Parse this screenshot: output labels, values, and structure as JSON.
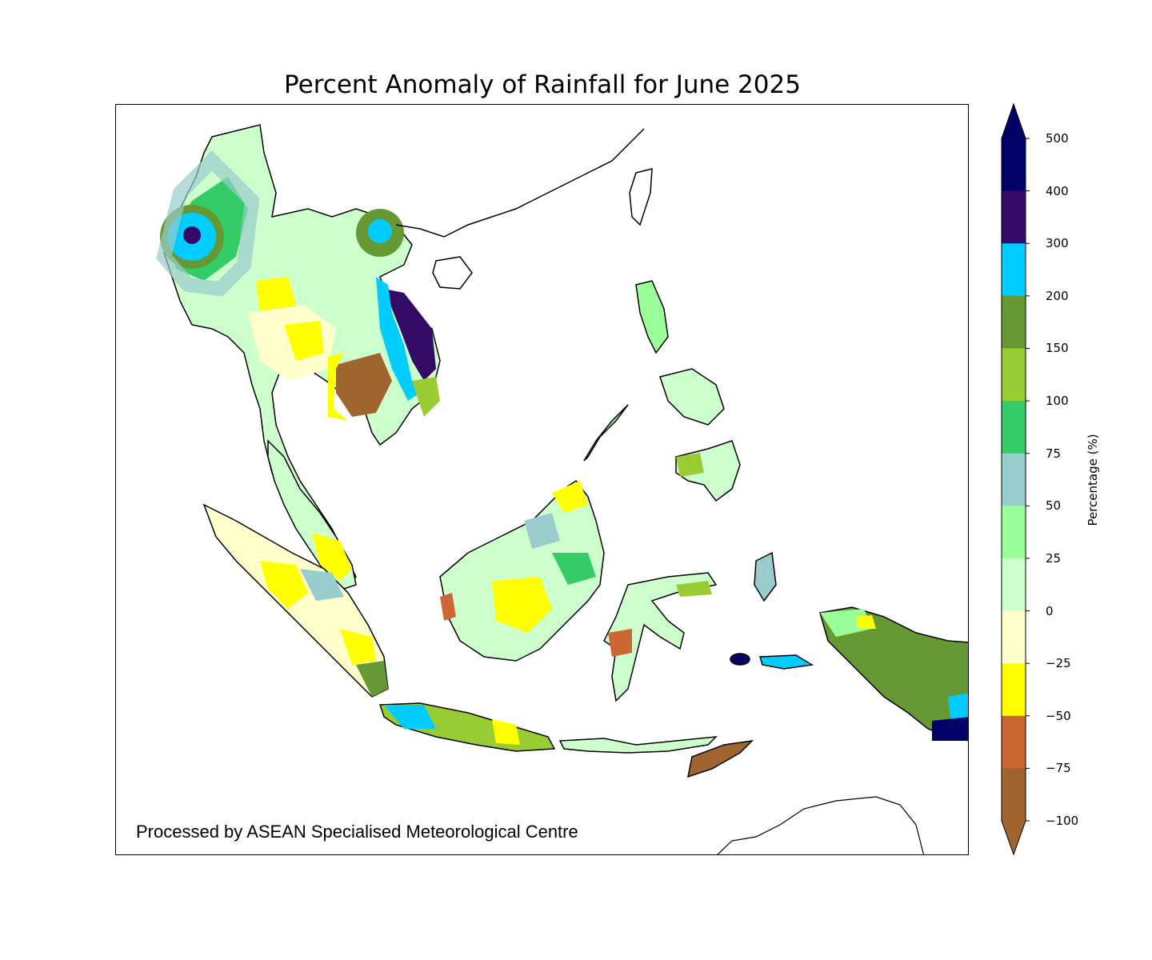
{
  "title": "Percent Anomaly of Rainfall for June 2025",
  "credit": "Processed by ASEAN Specialised Meteorological Centre",
  "colorbar": {
    "label": "Percentage (%)",
    "ticks": [
      "500",
      "400",
      "300",
      "200",
      "150",
      "100",
      "75",
      "50",
      "25",
      "0",
      "−25",
      "−50",
      "−75",
      "−100"
    ],
    "bins": [
      {
        "range": "400 to 500",
        "color": "#000066"
      },
      {
        "range": "300 to 400",
        "color": "#330a66"
      },
      {
        "range": "200 to 300",
        "color": "#00ccff"
      },
      {
        "range": "150 to 200",
        "color": "#669933"
      },
      {
        "range": "100 to 150",
        "color": "#99cc33"
      },
      {
        "range": "75 to 100",
        "color": "#33cc66"
      },
      {
        "range": "50 to 75",
        "color": "#99cccc"
      },
      {
        "range": "25 to 50",
        "color": "#99ff99"
      },
      {
        "range": "0 to 25",
        "color": "#ccffcc"
      },
      {
        "range": "-25 to 0",
        "color": "#ffffcc"
      },
      {
        "range": "-50 to -25",
        "color": "#ffff00"
      },
      {
        "range": "-75 to -50",
        "color": "#cc6633"
      },
      {
        "range": "-100 to -75",
        "color": "#a0652f"
      }
    ],
    "extend_top_color": "#000066",
    "extend_bottom_color": "#a0652f"
  }
}
